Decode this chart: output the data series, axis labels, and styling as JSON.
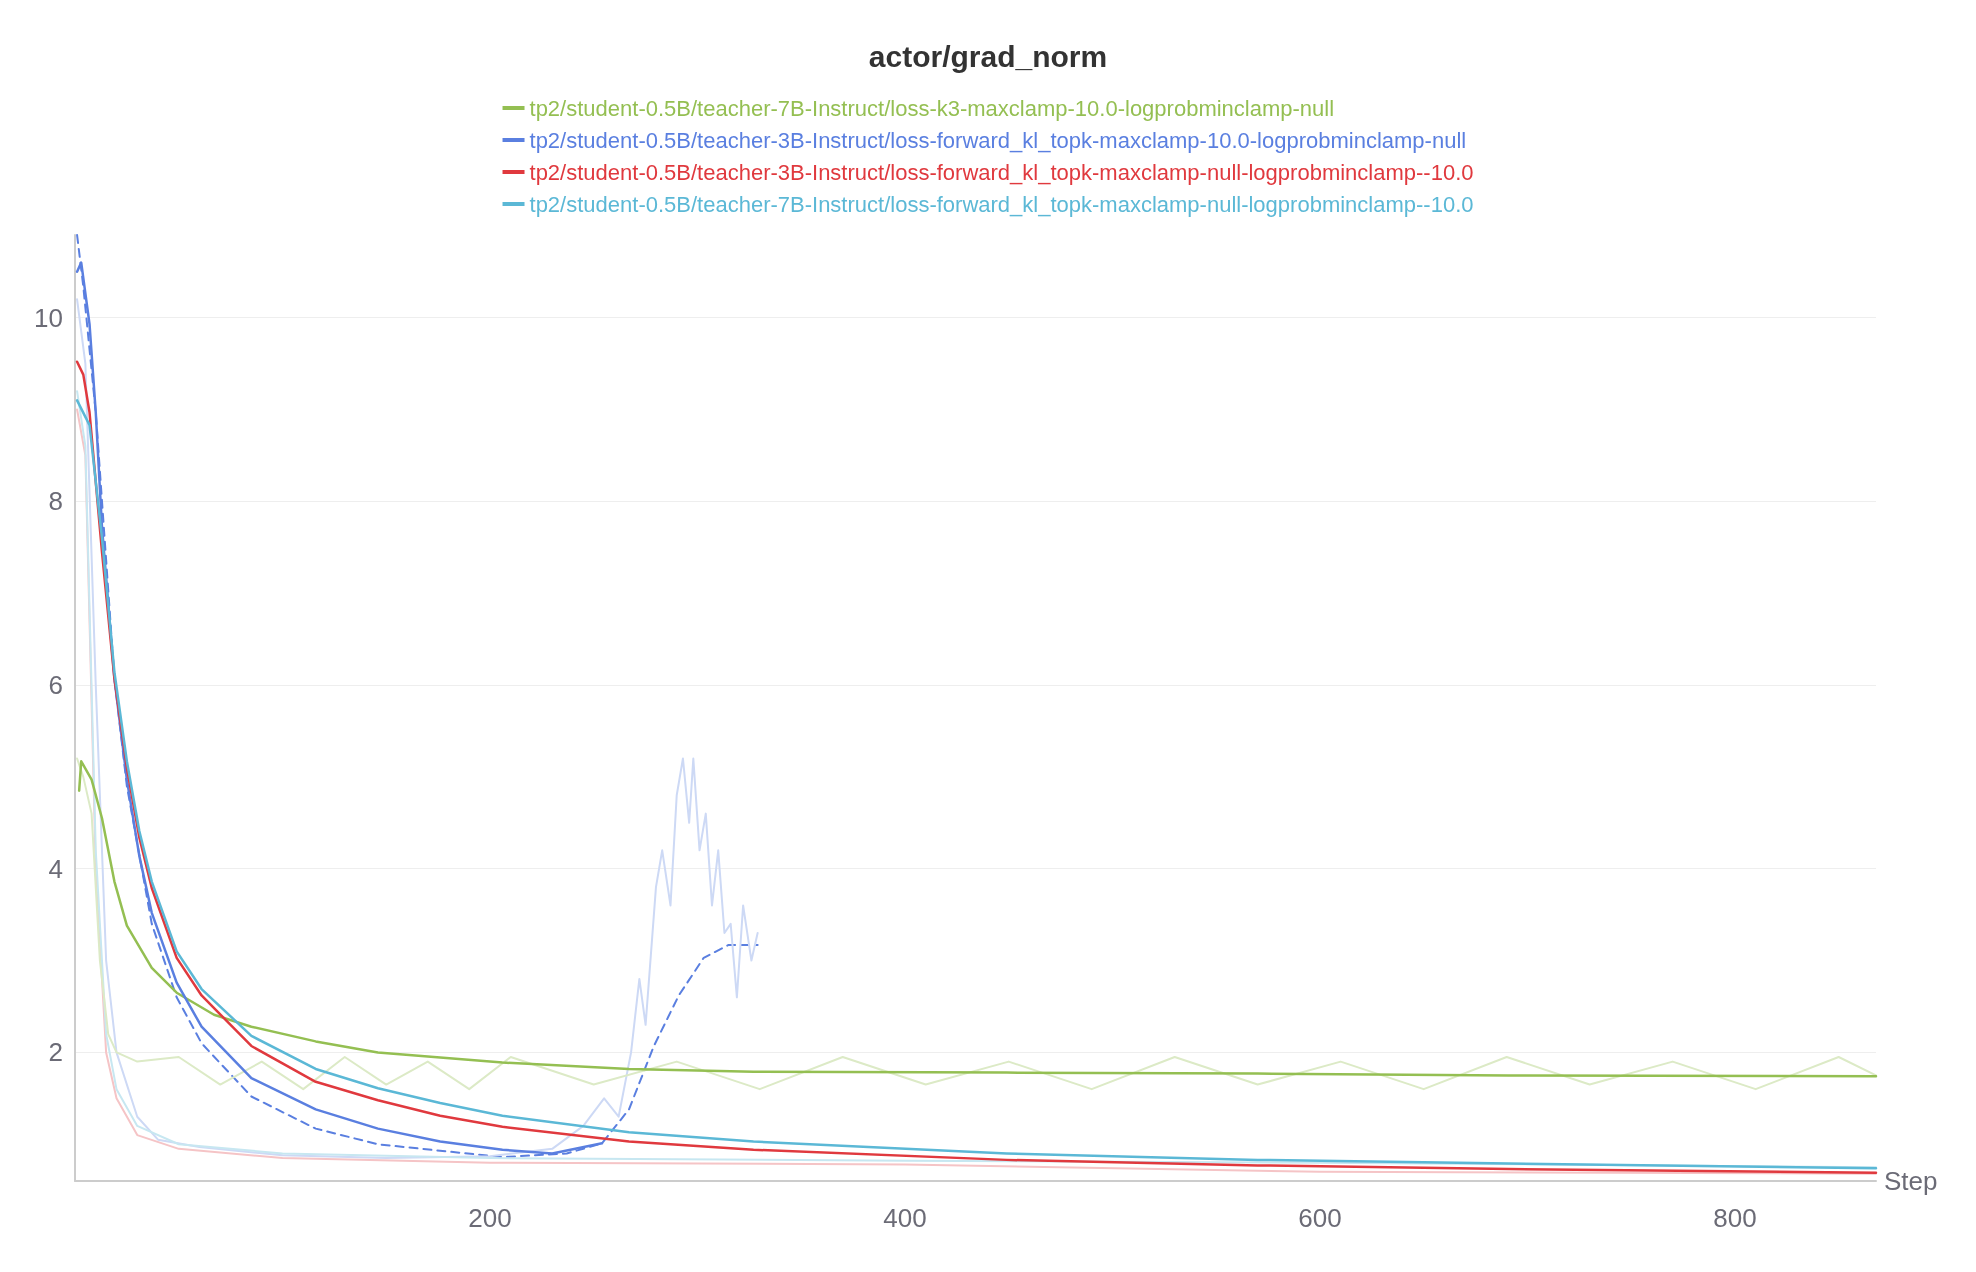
{
  "chart_data": {
    "type": "line",
    "title": "actor/grad_norm",
    "xlabel": "Step",
    "xlim": [
      0,
      868
    ],
    "xticks": [
      200,
      400,
      600,
      800
    ],
    "ylim": [
      0.6,
      10.9
    ],
    "yticks": [
      2,
      4,
      6,
      8,
      10
    ],
    "grid": "y",
    "legend": "top",
    "marker": "none",
    "line_style": "solid",
    "series": [
      {
        "name": "tp2/student-0.5B/teacher-7B-Instruct/loss-k3-maxclamp-10.0-logprobminclamp-null",
        "color": "#94bf52",
        "x": [
          2,
          3,
          8,
          13,
          19,
          25,
          37,
          49,
          67,
          85,
          116,
          146,
          206,
          267,
          327,
          449,
          570,
          691,
          868
        ],
        "values": [
          4.85,
          5.17,
          4.97,
          4.55,
          3.86,
          3.38,
          2.92,
          2.65,
          2.41,
          2.28,
          2.12,
          2.0,
          1.89,
          1.82,
          1.79,
          1.78,
          1.77,
          1.75,
          1.74
        ]
      },
      {
        "name": "tp2/student-0.5B/teacher-3B-Instruct/loss-forward_kl_topk-maxclamp-10.0-logprobminclamp-null",
        "color": "#5a7fe0",
        "x": [
          1,
          3,
          7,
          10,
          13,
          19,
          25,
          31,
          37,
          49,
          61,
          85,
          116,
          146,
          176,
          206,
          230,
          254
        ],
        "values": [
          10.5,
          10.6,
          9.93,
          8.97,
          7.72,
          6.07,
          4.97,
          4.14,
          3.52,
          2.76,
          2.28,
          1.72,
          1.38,
          1.17,
          1.03,
          0.94,
          0.9,
          1.01
        ]
      },
      {
        "name": "tp2/student-0.5B/teacher-3B-Instruct/loss-forward_kl_topk-maxclamp-null-logprobminclamp--10.0",
        "color": "#e0393e",
        "x": [
          1,
          4,
          7,
          13,
          19,
          25,
          31,
          37,
          49,
          61,
          85,
          116,
          146,
          176,
          206,
          267,
          327,
          449,
          570,
          691,
          868
        ],
        "values": [
          9.52,
          9.38,
          8.97,
          7.45,
          6.07,
          5.1,
          4.34,
          3.79,
          3.03,
          2.62,
          2.07,
          1.68,
          1.48,
          1.31,
          1.19,
          1.03,
          0.94,
          0.83,
          0.77,
          0.73,
          0.69
        ]
      },
      {
        "name": "tp2/student-0.5B/teacher-7B-Instruct/loss-forward_kl_topk-maxclamp-null-logprobminclamp--10.0",
        "color": "#5bb8d6",
        "x": [
          1,
          7,
          13,
          19,
          25,
          31,
          37,
          49,
          61,
          85,
          116,
          146,
          176,
          206,
          267,
          327,
          449,
          570,
          691,
          868
        ],
        "values": [
          9.1,
          8.83,
          7.6,
          6.14,
          5.17,
          4.41,
          3.86,
          3.1,
          2.69,
          2.18,
          1.82,
          1.61,
          1.45,
          1.31,
          1.13,
          1.03,
          0.9,
          0.83,
          0.79,
          0.74
        ]
      },
      {
        "color": "#5a7fe0",
        "line_style": "dashed",
        "x": [
          1,
          4,
          10,
          19,
          25,
          37,
          49,
          61,
          85,
          116,
          146,
          206,
          237,
          254,
          267,
          279,
          291,
          303,
          315,
          329
        ],
        "values": [
          10.9,
          10.34,
          8.97,
          6.07,
          4.9,
          3.4,
          2.6,
          2.1,
          1.52,
          1.17,
          1.0,
          0.86,
          0.9,
          1.01,
          1.38,
          2.07,
          2.62,
          3.03,
          3.17,
          3.17
        ]
      },
      {
        "color": "#cdd9f5",
        "x": [
          1,
          5,
          10,
          15,
          20,
          30,
          40,
          60,
          100,
          150,
          200,
          230,
          245,
          255,
          262,
          268,
          272,
          275,
          280,
          283,
          287,
          290,
          293,
          296,
          298,
          301,
          304,
          307,
          310,
          313,
          316,
          319,
          322,
          326,
          329
        ],
        "values": [
          10.2,
          9.5,
          6,
          3,
          2.0,
          1.3,
          1.05,
          0.97,
          0.88,
          0.85,
          0.87,
          0.95,
          1.2,
          1.5,
          1.3,
          2.0,
          2.8,
          2.3,
          3.8,
          4.2,
          3.6,
          4.8,
          5.2,
          4.5,
          5.2,
          4.2,
          4.6,
          3.6,
          4.2,
          3.3,
          3.4,
          2.6,
          3.6,
          3.0,
          3.3
        ]
      },
      {
        "color": "#f5c4c6",
        "x": [
          1,
          5,
          10,
          15,
          20,
          30,
          50,
          100,
          200,
          400,
          600,
          868
        ],
        "values": [
          9.0,
          8.5,
          4,
          2.0,
          1.5,
          1.1,
          0.95,
          0.85,
          0.8,
          0.78,
          0.7,
          0.68
        ]
      },
      {
        "color": "#c7e7f1",
        "x": [
          1,
          5,
          10,
          15,
          20,
          30,
          50,
          100,
          200,
          400,
          600,
          868
        ],
        "values": [
          9.2,
          8.6,
          4.2,
          2.2,
          1.6,
          1.2,
          1.0,
          0.9,
          0.85,
          0.82,
          0.8,
          0.75
        ]
      },
      {
        "color": "#dceac6",
        "x": [
          1,
          4,
          8,
          12,
          16,
          20,
          30,
          50,
          70,
          90,
          110,
          130,
          150,
          170,
          190,
          210,
          250,
          290,
          330,
          370,
          410,
          450,
          490,
          530,
          570,
          610,
          650,
          690,
          730,
          770,
          810,
          850,
          868
        ],
        "values": [
          5.2,
          5.0,
          4.6,
          3.0,
          2.2,
          2.0,
          1.9,
          1.95,
          1.65,
          1.9,
          1.6,
          1.95,
          1.65,
          1.9,
          1.6,
          1.95,
          1.65,
          1.9,
          1.6,
          1.95,
          1.65,
          1.9,
          1.6,
          1.95,
          1.65,
          1.9,
          1.6,
          1.95,
          1.65,
          1.9,
          1.6,
          1.95,
          1.75
        ]
      }
    ]
  }
}
